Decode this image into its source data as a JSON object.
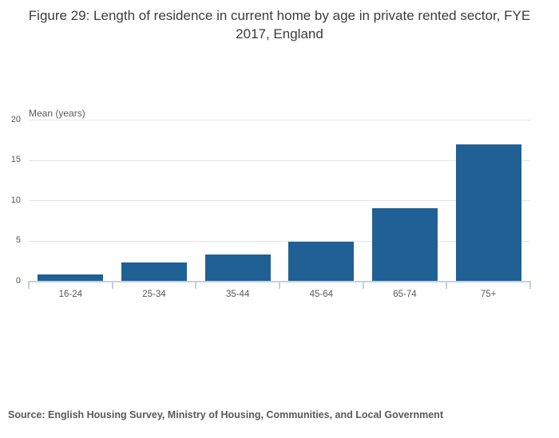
{
  "title": "Figure 29: Length of residence in current home by age in private rented sector, FYE 2017, England",
  "source_note": "Source: English Housing Survey, Ministry of Housing, Communities, and Local Government",
  "chart_data": {
    "type": "bar",
    "title": "Figure 29: Length of residence in current home by age in private rented sector, FYE 2017, England",
    "categories": [
      "16-24",
      "25-34",
      "35-44",
      "45-64",
      "65-74",
      "75+"
    ],
    "values": [
      0.8,
      2.3,
      3.3,
      4.9,
      9.1,
      17.0
    ],
    "xlabel": "",
    "ylabel": "Mean (years)",
    "yticks": [
      0,
      5,
      10,
      15,
      20
    ],
    "ylim": [
      0,
      20
    ],
    "grid": true,
    "legend": false,
    "colors": {
      "bar": "#206095",
      "gridline": "#e4e4e4",
      "axis_line": "#c3cfe3",
      "tick_label": "#595959",
      "title": "#3b3b3b",
      "source": "#595959"
    }
  }
}
